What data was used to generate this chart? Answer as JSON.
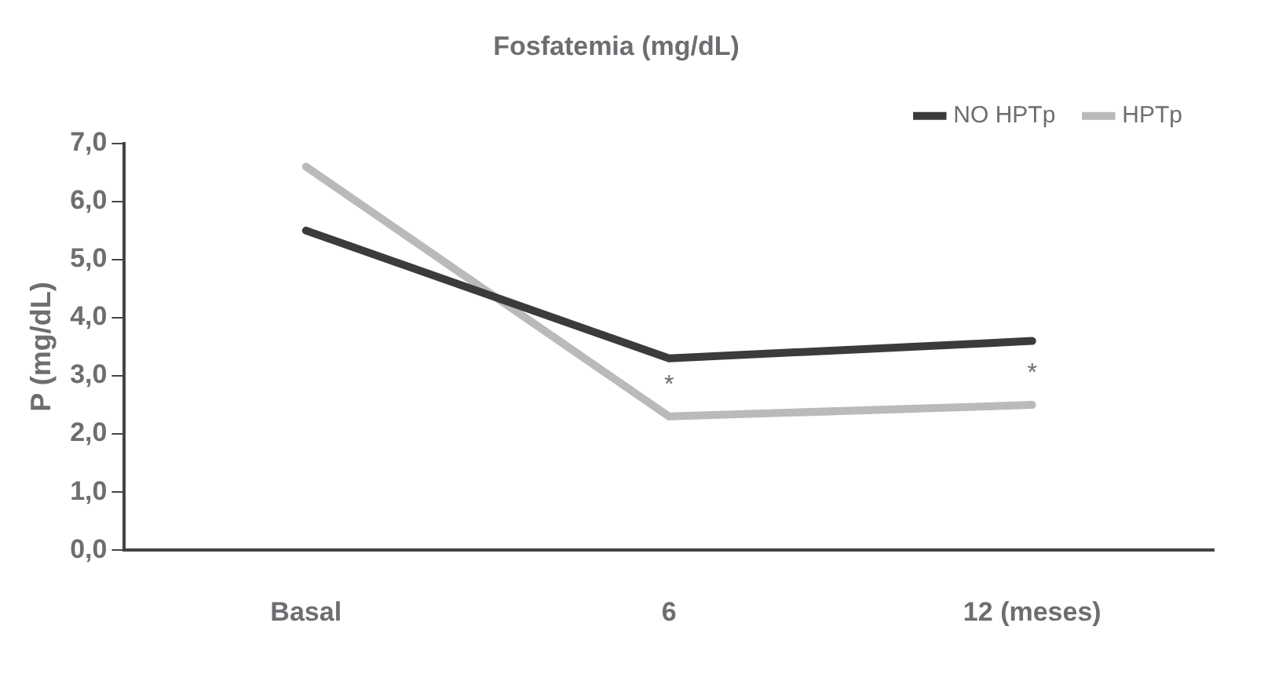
{
  "chart_data": {
    "type": "line",
    "title": "Fosfatemia (mg/dL)",
    "ylabel": "P (mg/dL)",
    "categories": [
      "Basal",
      "6",
      "12 (meses)"
    ],
    "series": [
      {
        "name": "NO HPTp",
        "color": "#3a3b3d",
        "values": [
          5.5,
          3.3,
          3.6
        ]
      },
      {
        "name": "HPTp",
        "color": "#b9babc",
        "values": [
          6.6,
          2.3,
          2.5
        ]
      }
    ],
    "ylim": [
      0,
      7
    ],
    "yticks": [
      {
        "value": 0,
        "label": "0,0"
      },
      {
        "value": 1,
        "label": "1,0"
      },
      {
        "value": 2,
        "label": "2,0"
      },
      {
        "value": 3,
        "label": "3,0"
      },
      {
        "value": 4,
        "label": "4,0"
      },
      {
        "value": 5,
        "label": "5,0"
      },
      {
        "value": 6,
        "label": "6,0"
      },
      {
        "value": 7,
        "label": "7,0"
      }
    ],
    "annotations": [
      {
        "text": "*",
        "x": "6",
        "y": 2.3
      },
      {
        "text": "*",
        "x": "12 (meses)",
        "y": 2.5
      }
    ],
    "grid": false,
    "legend": "top right",
    "marker": "none",
    "line_style": "solid"
  }
}
